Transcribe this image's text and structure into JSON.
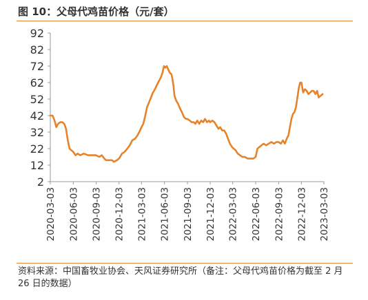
{
  "header": {
    "title": "图 10：父母代鸡苗价格（元/套）"
  },
  "footer": {
    "source": "资料来源：中国畜牧业协会、天风证券研究所（备注：父母代鸡苗价格为截至 2 月 26 日的数据）"
  },
  "colors": {
    "line": "#e8822a",
    "accent_rule": "#e8873a",
    "axis": "#999999",
    "text": "#333333"
  },
  "chart_data": {
    "type": "line",
    "title": "图 10：父母代鸡苗价格（元/套）",
    "xlabel": "",
    "ylabel": "",
    "ylim": [
      2,
      92
    ],
    "yticks": [
      2,
      12,
      22,
      32,
      42,
      52,
      62,
      72,
      82,
      92
    ],
    "xticks": [
      "2020-03-03",
      "2020-06-03",
      "2020-09-03",
      "2020-12-03",
      "2021-03-03",
      "2021-06-03",
      "2021-09-03",
      "2021-12-03",
      "2022-03-03",
      "2022-06-03",
      "2022-09-03",
      "2022-12-03",
      "2023-03-03"
    ],
    "grid": false,
    "legend": "none",
    "series": [
      {
        "points": [
          [
            "2020-03-03",
            42
          ],
          [
            "2020-03-12",
            42
          ],
          [
            "2020-03-20",
            39
          ],
          [
            "2020-03-27",
            35
          ],
          [
            "2020-04-03",
            37
          ],
          [
            "2020-04-12",
            38
          ],
          [
            "2020-04-20",
            38
          ],
          [
            "2020-04-28",
            37
          ],
          [
            "2020-05-05",
            34
          ],
          [
            "2020-05-12",
            27
          ],
          [
            "2020-05-19",
            22
          ],
          [
            "2020-05-26",
            21
          ],
          [
            "2020-06-03",
            20
          ],
          [
            "2020-06-12",
            18
          ],
          [
            "2020-06-20",
            19
          ],
          [
            "2020-07-01",
            18
          ],
          [
            "2020-07-15",
            19
          ],
          [
            "2020-08-01",
            18
          ],
          [
            "2020-08-15",
            18
          ],
          [
            "2020-09-01",
            18
          ],
          [
            "2020-09-15",
            17
          ],
          [
            "2020-09-25",
            18
          ],
          [
            "2020-10-05",
            16
          ],
          [
            "2020-10-12",
            15
          ],
          [
            "2020-10-25",
            15
          ],
          [
            "2020-11-05",
            15
          ],
          [
            "2020-11-12",
            14
          ],
          [
            "2020-11-25",
            15
          ],
          [
            "2020-12-03",
            16
          ],
          [
            "2020-12-15",
            19
          ],
          [
            "2020-12-25",
            20
          ],
          [
            "2021-01-05",
            22
          ],
          [
            "2021-01-15",
            24
          ],
          [
            "2021-01-25",
            27
          ],
          [
            "2021-02-05",
            28
          ],
          [
            "2021-02-15",
            30
          ],
          [
            "2021-02-25",
            33
          ],
          [
            "2021-03-03",
            35
          ],
          [
            "2021-03-10",
            37
          ],
          [
            "2021-03-18",
            42
          ],
          [
            "2021-03-25",
            47
          ],
          [
            "2021-04-02",
            50
          ],
          [
            "2021-04-10",
            53
          ],
          [
            "2021-04-18",
            56
          ],
          [
            "2021-04-26",
            58
          ],
          [
            "2021-05-05",
            61
          ],
          [
            "2021-05-12",
            63
          ],
          [
            "2021-05-19",
            65
          ],
          [
            "2021-05-26",
            68
          ],
          [
            "2021-06-01",
            72
          ],
          [
            "2021-06-06",
            71
          ],
          [
            "2021-06-12",
            72
          ],
          [
            "2021-06-18",
            70
          ],
          [
            "2021-06-24",
            68
          ],
          [
            "2021-07-01",
            67
          ],
          [
            "2021-07-05",
            64
          ],
          [
            "2021-07-09",
            60
          ],
          [
            "2021-07-13",
            54
          ],
          [
            "2021-07-20",
            51
          ],
          [
            "2021-07-28",
            49
          ],
          [
            "2021-08-05",
            46
          ],
          [
            "2021-08-12",
            44
          ],
          [
            "2021-08-20",
            41
          ],
          [
            "2021-08-28",
            40
          ],
          [
            "2021-09-03",
            40
          ],
          [
            "2021-09-12",
            39
          ],
          [
            "2021-09-20",
            38
          ],
          [
            "2021-09-28",
            38
          ],
          [
            "2021-10-05",
            37
          ],
          [
            "2021-10-12",
            39
          ],
          [
            "2021-10-20",
            37
          ],
          [
            "2021-10-28",
            39
          ],
          [
            "2021-11-05",
            38
          ],
          [
            "2021-11-12",
            40
          ],
          [
            "2021-11-20",
            38
          ],
          [
            "2021-11-28",
            39
          ],
          [
            "2021-12-03",
            38
          ],
          [
            "2021-12-12",
            39
          ],
          [
            "2021-12-20",
            38
          ],
          [
            "2021-12-28",
            36
          ],
          [
            "2022-01-05",
            34
          ],
          [
            "2022-01-12",
            35
          ],
          [
            "2022-01-20",
            33
          ],
          [
            "2022-01-28",
            33
          ],
          [
            "2022-02-05",
            31
          ],
          [
            "2022-02-12",
            28
          ],
          [
            "2022-02-20",
            25
          ],
          [
            "2022-02-28",
            23
          ],
          [
            "2022-03-07",
            22
          ],
          [
            "2022-03-15",
            21
          ],
          [
            "2022-03-23",
            19
          ],
          [
            "2022-04-01",
            18
          ],
          [
            "2022-04-10",
            17
          ],
          [
            "2022-04-20",
            17
          ],
          [
            "2022-05-01",
            16
          ],
          [
            "2022-05-12",
            16
          ],
          [
            "2022-05-25",
            16
          ],
          [
            "2022-06-03",
            17
          ],
          [
            "2022-06-10",
            22
          ],
          [
            "2022-06-18",
            23
          ],
          [
            "2022-06-26",
            24
          ],
          [
            "2022-07-05",
            25
          ],
          [
            "2022-07-15",
            24
          ],
          [
            "2022-07-25",
            25
          ],
          [
            "2022-08-05",
            26
          ],
          [
            "2022-08-15",
            25
          ],
          [
            "2022-08-25",
            26
          ],
          [
            "2022-09-03",
            26
          ],
          [
            "2022-09-12",
            25
          ],
          [
            "2022-09-20",
            27
          ],
          [
            "2022-09-28",
            25
          ],
          [
            "2022-10-05",
            28
          ],
          [
            "2022-10-12",
            30
          ],
          [
            "2022-10-18",
            35
          ],
          [
            "2022-10-24",
            40
          ],
          [
            "2022-10-30",
            43
          ],
          [
            "2022-11-05",
            44
          ],
          [
            "2022-11-11",
            47
          ],
          [
            "2022-11-17",
            53
          ],
          [
            "2022-11-23",
            59
          ],
          [
            "2022-11-28",
            62
          ],
          [
            "2022-12-03",
            62
          ],
          [
            "2022-12-10",
            56
          ],
          [
            "2022-12-17",
            58
          ],
          [
            "2022-12-24",
            57
          ],
          [
            "2022-12-31",
            55
          ],
          [
            "2023-01-07",
            56
          ],
          [
            "2023-01-14",
            57
          ],
          [
            "2023-01-21",
            57
          ],
          [
            "2023-01-28",
            55
          ],
          [
            "2023-02-04",
            57
          ],
          [
            "2023-02-10",
            53
          ],
          [
            "2023-02-18",
            54
          ],
          [
            "2023-02-26",
            55
          ]
        ]
      }
    ]
  }
}
